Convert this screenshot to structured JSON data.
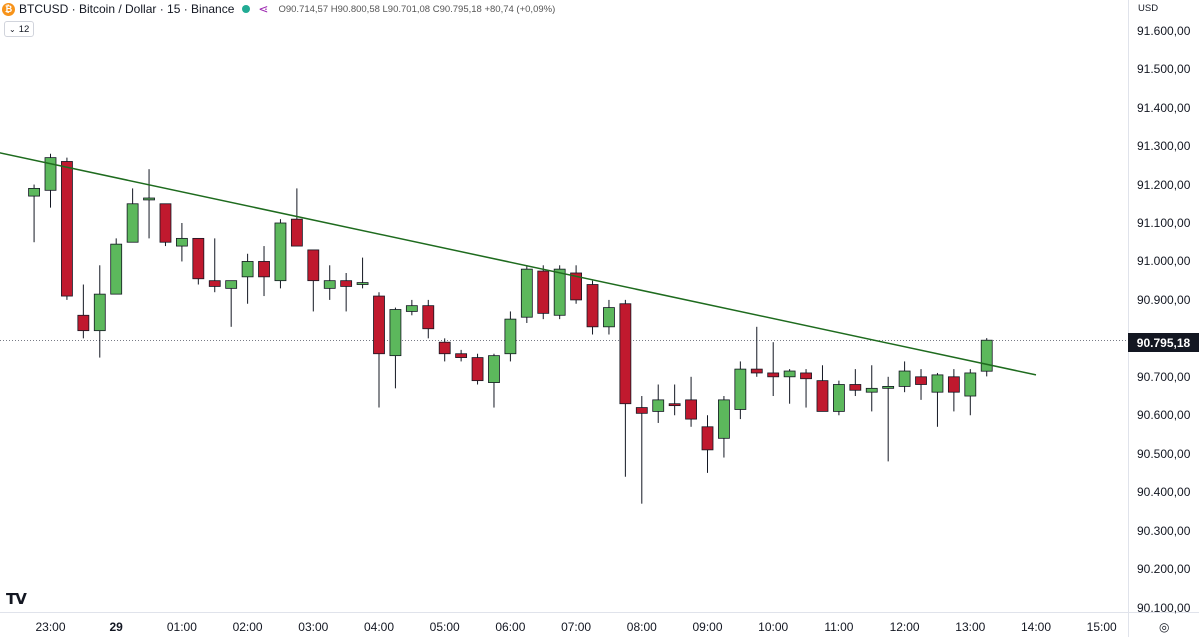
{
  "header": {
    "coin_icon": "₿",
    "title": "BTCUSD · Bitcoin / Dollar · 15 · Binance",
    "status_color": "#22ab94",
    "nodes_icon": "⋖",
    "ohlc": "O90.714,57 H90.800,58 L90.701,08 C90.795,18 +80,74 (+0,09%)"
  },
  "indicator": {
    "chevron_icon": "⌄",
    "label": "12"
  },
  "axis": {
    "currency": "USD"
  },
  "price_tag": "90.795,18",
  "brand": {
    "logo": "TV"
  },
  "settings_icon": "◎",
  "colors": {
    "up": "#5cb85c",
    "down": "#c0192e",
    "wick": "#131722",
    "trendline": "#1e6b1e"
  },
  "chart_data": {
    "type": "candlestick",
    "ylim": [
      90080,
      91680
    ],
    "y_ticks": [
      "90.100,00",
      "90.200,00",
      "90.300,00",
      "90.400,00",
      "90.500,00",
      "90.600,00",
      "90.700,00",
      "90.800,00",
      "90.900,00",
      "91.000,00",
      "91.100,00",
      "91.200,00",
      "91.300,00",
      "91.400,00",
      "91.500,00",
      "91.600,00"
    ],
    "y_tick_values": [
      90100,
      90200,
      90300,
      90400,
      90500,
      90600,
      90700,
      90800,
      90900,
      91000,
      91100,
      91200,
      91300,
      91400,
      91500,
      91600
    ],
    "x_ticks": [
      "23:00",
      "29",
      "01:00",
      "02:00",
      "03:00",
      "04:00",
      "05:00",
      "06:00",
      "07:00",
      "08:00",
      "09:00",
      "10:00",
      "11:00",
      "12:00",
      "13:00",
      "14:00",
      "15:00"
    ],
    "x_tick_hours": [
      23,
      24,
      25,
      26,
      27,
      28,
      29,
      30,
      31,
      32,
      33,
      34,
      35,
      36,
      37,
      38,
      39
    ],
    "last_price": 90795.18,
    "trendline": {
      "start": [
        21.75,
        91300
      ],
      "end": [
        38.0,
        90705
      ]
    },
    "candles": [
      {
        "t": 22.75,
        "o": 91170,
        "h": 91200,
        "l": 91050,
        "c": 91190
      },
      {
        "t": 23.0,
        "o": 91185,
        "h": 91280,
        "l": 91140,
        "c": 91270
      },
      {
        "t": 23.25,
        "o": 91260,
        "h": 91270,
        "l": 90900,
        "c": 90910
      },
      {
        "t": 23.5,
        "o": 90860,
        "h": 90940,
        "l": 90800,
        "c": 90820
      },
      {
        "t": 23.75,
        "o": 90820,
        "h": 90990,
        "l": 90750,
        "c": 90915
      },
      {
        "t": 24.0,
        "o": 90915,
        "h": 91060,
        "l": 90915,
        "c": 91045
      },
      {
        "t": 24.25,
        "o": 91050,
        "h": 91190,
        "l": 91050,
        "c": 91150
      },
      {
        "t": 24.5,
        "o": 91160,
        "h": 91240,
        "l": 91060,
        "c": 91165
      },
      {
        "t": 24.75,
        "o": 91150,
        "h": 91150,
        "l": 91040,
        "c": 91050
      },
      {
        "t": 25.0,
        "o": 91040,
        "h": 91100,
        "l": 91000,
        "c": 91060
      },
      {
        "t": 25.25,
        "o": 91060,
        "h": 91060,
        "l": 90940,
        "c": 90955
      },
      {
        "t": 25.5,
        "o": 90950,
        "h": 91060,
        "l": 90920,
        "c": 90935
      },
      {
        "t": 25.75,
        "o": 90930,
        "h": 90950,
        "l": 90830,
        "c": 90950
      },
      {
        "t": 26.0,
        "o": 90960,
        "h": 91020,
        "l": 90890,
        "c": 91000
      },
      {
        "t": 26.25,
        "o": 91000,
        "h": 91040,
        "l": 90910,
        "c": 90960
      },
      {
        "t": 26.5,
        "o": 90950,
        "h": 91110,
        "l": 90930,
        "c": 91100
      },
      {
        "t": 26.75,
        "o": 91110,
        "h": 91190,
        "l": 91040,
        "c": 91040
      },
      {
        "t": 27.0,
        "o": 91030,
        "h": 91030,
        "l": 90870,
        "c": 90950
      },
      {
        "t": 27.25,
        "o": 90930,
        "h": 90990,
        "l": 90900,
        "c": 90950
      },
      {
        "t": 27.5,
        "o": 90950,
        "h": 90970,
        "l": 90870,
        "c": 90935
      },
      {
        "t": 27.75,
        "o": 90940,
        "h": 91010,
        "l": 90930,
        "c": 90945
      },
      {
        "t": 28.0,
        "o": 90910,
        "h": 90920,
        "l": 90620,
        "c": 90760
      },
      {
        "t": 28.25,
        "o": 90755,
        "h": 90880,
        "l": 90670,
        "c": 90875
      },
      {
        "t": 28.5,
        "o": 90870,
        "h": 90900,
        "l": 90860,
        "c": 90885
      },
      {
        "t": 28.75,
        "o": 90885,
        "h": 90900,
        "l": 90800,
        "c": 90825
      },
      {
        "t": 29.0,
        "o": 90790,
        "h": 90800,
        "l": 90740,
        "c": 90760
      },
      {
        "t": 29.25,
        "o": 90760,
        "h": 90770,
        "l": 90740,
        "c": 90750
      },
      {
        "t": 29.5,
        "o": 90750,
        "h": 90760,
        "l": 90680,
        "c": 90690
      },
      {
        "t": 29.75,
        "o": 90685,
        "h": 90760,
        "l": 90620,
        "c": 90755
      },
      {
        "t": 30.0,
        "o": 90760,
        "h": 90870,
        "l": 90740,
        "c": 90850
      },
      {
        "t": 30.25,
        "o": 90855,
        "h": 90990,
        "l": 90840,
        "c": 90980
      },
      {
        "t": 30.5,
        "o": 90975,
        "h": 90990,
        "l": 90850,
        "c": 90865
      },
      {
        "t": 30.75,
        "o": 90860,
        "h": 90990,
        "l": 90850,
        "c": 90980
      },
      {
        "t": 31.0,
        "o": 90970,
        "h": 90990,
        "l": 90890,
        "c": 90900
      },
      {
        "t": 31.25,
        "o": 90940,
        "h": 90950,
        "l": 90810,
        "c": 90830
      },
      {
        "t": 31.5,
        "o": 90830,
        "h": 90900,
        "l": 90810,
        "c": 90880
      },
      {
        "t": 31.75,
        "o": 90890,
        "h": 90900,
        "l": 90440,
        "c": 90630
      },
      {
        "t": 32.0,
        "o": 90620,
        "h": 90650,
        "l": 90370,
        "c": 90605
      },
      {
        "t": 32.25,
        "o": 90610,
        "h": 90680,
        "l": 90580,
        "c": 90640
      },
      {
        "t": 32.5,
        "o": 90630,
        "h": 90680,
        "l": 90600,
        "c": 90625
      },
      {
        "t": 32.75,
        "o": 90640,
        "h": 90700,
        "l": 90570,
        "c": 90590
      },
      {
        "t": 33.0,
        "o": 90570,
        "h": 90600,
        "l": 90450,
        "c": 90510
      },
      {
        "t": 33.25,
        "o": 90540,
        "h": 90650,
        "l": 90490,
        "c": 90640
      },
      {
        "t": 33.5,
        "o": 90615,
        "h": 90740,
        "l": 90590,
        "c": 90720
      },
      {
        "t": 33.75,
        "o": 90720,
        "h": 90830,
        "l": 90700,
        "c": 90710
      },
      {
        "t": 34.0,
        "o": 90710,
        "h": 90790,
        "l": 90650,
        "c": 90700
      },
      {
        "t": 34.25,
        "o": 90700,
        "h": 90720,
        "l": 90630,
        "c": 90715
      },
      {
        "t": 34.5,
        "o": 90710,
        "h": 90720,
        "l": 90620,
        "c": 90695
      },
      {
        "t": 34.75,
        "o": 90690,
        "h": 90730,
        "l": 90610,
        "c": 90610
      },
      {
        "t": 35.0,
        "o": 90610,
        "h": 90690,
        "l": 90600,
        "c": 90680
      },
      {
        "t": 35.25,
        "o": 90680,
        "h": 90720,
        "l": 90650,
        "c": 90665
      },
      {
        "t": 35.5,
        "o": 90660,
        "h": 90730,
        "l": 90610,
        "c": 90670
      },
      {
        "t": 35.75,
        "o": 90670,
        "h": 90700,
        "l": 90480,
        "c": 90675
      },
      {
        "t": 36.0,
        "o": 90675,
        "h": 90740,
        "l": 90660,
        "c": 90715
      },
      {
        "t": 36.25,
        "o": 90700,
        "h": 90720,
        "l": 90640,
        "c": 90680
      },
      {
        "t": 36.5,
        "o": 90660,
        "h": 90710,
        "l": 90570,
        "c": 90705
      },
      {
        "t": 36.75,
        "o": 90700,
        "h": 90720,
        "l": 90610,
        "c": 90660
      },
      {
        "t": 37.0,
        "o": 90650,
        "h": 90720,
        "l": 90600,
        "c": 90710
      },
      {
        "t": 37.25,
        "o": 90714.57,
        "h": 90800.58,
        "l": 90701.08,
        "c": 90795.18
      }
    ]
  }
}
